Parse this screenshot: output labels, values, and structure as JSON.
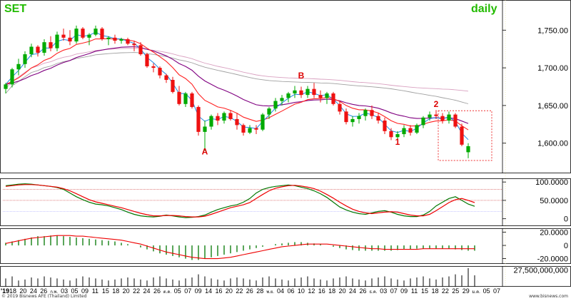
{
  "chart_data": {
    "type": "candlestick",
    "symbol": "SET",
    "period": "daily",
    "colors": {
      "up": "#00aa00",
      "down": "#ee1111",
      "ma_fast": "#1e88e5",
      "ma_red": "#ff2222",
      "ma_purple": "#800080",
      "ma_gray": "#a0a0a0",
      "ma_pink": "#d9a0c0",
      "label_green": "#22bb00",
      "label_red": "#dd0000",
      "osc_green": "#007700",
      "osc_red": "#ee0000",
      "box": "#ee3333",
      "ref_line": "#cc3333"
    },
    "price_axis": {
      "ticks": [
        "1,750.00",
        "1,700.00",
        "1,650.00",
        "1,600.00"
      ],
      "tick_values": [
        1750,
        1700,
        1650,
        1600
      ],
      "ylim": [
        1560,
        1790
      ]
    },
    "stoch_axis": {
      "ticks": [
        "100.0000",
        "50.0000",
        "0"
      ],
      "tick_values": [
        100,
        50,
        0
      ],
      "ylim": [
        -20,
        110
      ]
    },
    "macd_axis": {
      "ticks": [
        "20.0000",
        "0",
        "-20.0000"
      ],
      "tick_values": [
        20,
        0,
        -20
      ],
      "ylim": [
        -28,
        26
      ]
    },
    "volume_axis": {
      "ticks": [
        "27,500,000,000"
      ],
      "tick_values": [
        27500000000
      ],
      "ylim": [
        0,
        34000000000
      ]
    },
    "x_axis": {
      "start_label": "'19",
      "labels": [
        "18",
        "20",
        "24",
        "26",
        "ก.พ.",
        "03",
        "05",
        "09",
        "11",
        "15",
        "18",
        "20",
        "22",
        "24",
        "26",
        "ต.ค.",
        "05",
        "07",
        "09",
        "14",
        "16",
        "20",
        "22",
        "26",
        "28",
        "พ.ย.",
        "04",
        "06",
        "10",
        "12",
        "16",
        "18",
        "20",
        "24",
        "26",
        "ธ.ค.",
        "03",
        "07",
        "09",
        "11",
        "15",
        "18",
        "22",
        "25",
        "29",
        "ม.ค.",
        "05",
        "07"
      ]
    },
    "ohlc": [
      [
        1672,
        1680,
        1666,
        1678
      ],
      [
        1678,
        1700,
        1674,
        1698
      ],
      [
        1698,
        1712,
        1690,
        1705
      ],
      [
        1705,
        1722,
        1700,
        1718
      ],
      [
        1718,
        1732,
        1714,
        1728
      ],
      [
        1728,
        1730,
        1715,
        1720
      ],
      [
        1720,
        1738,
        1716,
        1734
      ],
      [
        1734,
        1742,
        1722,
        1726
      ],
      [
        1726,
        1748,
        1722,
        1744
      ],
      [
        1744,
        1752,
        1736,
        1740
      ],
      [
        1740,
        1750,
        1730,
        1735
      ],
      [
        1735,
        1756,
        1732,
        1752
      ],
      [
        1752,
        1754,
        1738,
        1740
      ],
      [
        1740,
        1746,
        1730,
        1744
      ],
      [
        1744,
        1756,
        1742,
        1752
      ],
      [
        1752,
        1754,
        1736,
        1738
      ],
      [
        1738,
        1742,
        1730,
        1740
      ],
      [
        1740,
        1744,
        1732,
        1736
      ],
      [
        1736,
        1740,
        1732,
        1738
      ],
      [
        1738,
        1740,
        1730,
        1732
      ],
      [
        1732,
        1736,
        1722,
        1730
      ],
      [
        1730,
        1734,
        1716,
        1718
      ],
      [
        1718,
        1720,
        1700,
        1702
      ],
      [
        1702,
        1706,
        1694,
        1700
      ],
      [
        1700,
        1702,
        1686,
        1690
      ],
      [
        1690,
        1692,
        1680,
        1684
      ],
      [
        1684,
        1688,
        1666,
        1668
      ],
      [
        1668,
        1676,
        1650,
        1652
      ],
      [
        1652,
        1668,
        1648,
        1666
      ],
      [
        1666,
        1668,
        1646,
        1648
      ],
      [
        1648,
        1650,
        1610,
        1615
      ],
      [
        1615,
        1630,
        1590,
        1622
      ],
      [
        1622,
        1638,
        1618,
        1636
      ],
      [
        1636,
        1640,
        1624,
        1630
      ],
      [
        1630,
        1642,
        1626,
        1640
      ],
      [
        1640,
        1644,
        1630,
        1632
      ],
      [
        1632,
        1640,
        1618,
        1624
      ],
      [
        1624,
        1626,
        1610,
        1614
      ],
      [
        1614,
        1624,
        1612,
        1620
      ],
      [
        1620,
        1624,
        1612,
        1618
      ],
      [
        1618,
        1640,
        1616,
        1638
      ],
      [
        1638,
        1648,
        1632,
        1646
      ],
      [
        1646,
        1660,
        1642,
        1656
      ],
      [
        1656,
        1664,
        1650,
        1660
      ],
      [
        1660,
        1668,
        1654,
        1666
      ],
      [
        1666,
        1676,
        1660,
        1670
      ],
      [
        1670,
        1675,
        1660,
        1664
      ],
      [
        1664,
        1676,
        1660,
        1672
      ],
      [
        1672,
        1680,
        1660,
        1664
      ],
      [
        1664,
        1670,
        1654,
        1660
      ],
      [
        1660,
        1668,
        1652,
        1666
      ],
      [
        1666,
        1668,
        1650,
        1652
      ],
      [
        1652,
        1656,
        1638,
        1642
      ],
      [
        1642,
        1646,
        1625,
        1628
      ],
      [
        1628,
        1636,
        1622,
        1632
      ],
      [
        1632,
        1640,
        1626,
        1636
      ],
      [
        1636,
        1646,
        1630,
        1644
      ],
      [
        1644,
        1650,
        1632,
        1636
      ],
      [
        1636,
        1640,
        1626,
        1630
      ],
      [
        1630,
        1634,
        1612,
        1616
      ],
      [
        1616,
        1620,
        1604,
        1608
      ],
      [
        1608,
        1616,
        1600,
        1612
      ],
      [
        1612,
        1624,
        1608,
        1620
      ],
      [
        1620,
        1624,
        1610,
        1614
      ],
      [
        1614,
        1626,
        1612,
        1624
      ],
      [
        1624,
        1636,
        1620,
        1634
      ],
      [
        1634,
        1642,
        1630,
        1638
      ],
      [
        1638,
        1644,
        1632,
        1636
      ],
      [
        1636,
        1640,
        1626,
        1630
      ],
      [
        1630,
        1642,
        1626,
        1638
      ],
      [
        1638,
        1640,
        1620,
        1622
      ],
      [
        1622,
        1626,
        1596,
        1598
      ],
      [
        1588,
        1600,
        1580,
        1596
      ]
    ],
    "annotations": [
      {
        "text": "A",
        "index": 31,
        "price": 1585,
        "color": "label_red"
      },
      {
        "text": "B",
        "index": 46,
        "price": 1686,
        "color": "label_red"
      },
      {
        "text": "1",
        "index": 61,
        "price": 1598,
        "color": "label_red"
      },
      {
        "text": "2",
        "index": 67,
        "price": 1648,
        "color": "label_red"
      }
    ],
    "highlight_box": {
      "from_index": 68,
      "to_index": 75,
      "price_high": 1643,
      "price_low": 1577
    },
    "stochastic": {
      "k": [
        90,
        92,
        94,
        95,
        94,
        92,
        90,
        88,
        85,
        80,
        70,
        60,
        52,
        45,
        40,
        38,
        35,
        30,
        25,
        18,
        12,
        8,
        6,
        5,
        7,
        10,
        8,
        5,
        3,
        4,
        6,
        10,
        18,
        25,
        30,
        35,
        38,
        45,
        55,
        70,
        80,
        85,
        88,
        90,
        92,
        90,
        86,
        82,
        76,
        68,
        58,
        45,
        32,
        24,
        18,
        14,
        12,
        16,
        20,
        22,
        18,
        12,
        8,
        6,
        6,
        10,
        20,
        35,
        45,
        55,
        60,
        50,
        40,
        34
      ],
      "d": [
        88,
        90,
        92,
        93,
        93,
        92,
        90,
        88,
        86,
        82,
        76,
        68,
        60,
        52,
        46,
        42,
        38,
        34,
        30,
        25,
        20,
        15,
        11,
        8,
        8,
        9,
        9,
        8,
        6,
        5,
        5,
        7,
        12,
        18,
        24,
        30,
        34,
        38,
        44,
        55,
        66,
        76,
        83,
        87,
        90,
        91,
        89,
        86,
        82,
        75,
        66,
        56,
        45,
        35,
        26,
        20,
        16,
        14,
        16,
        18,
        19,
        18,
        14,
        10,
        8,
        8,
        12,
        22,
        33,
        44,
        52,
        55,
        50,
        44
      ],
      "levels": [
        80,
        50,
        20
      ]
    },
    "macd": {
      "hist": [
        4,
        6,
        8,
        10,
        12,
        14,
        14,
        15,
        15,
        14,
        13,
        12,
        11,
        10,
        9,
        8,
        7,
        6,
        4,
        2,
        0,
        -3,
        -6,
        -9,
        -12,
        -14,
        -16,
        -18,
        -20,
        -22,
        -22,
        -20,
        -18,
        -16,
        -14,
        -12,
        -10,
        -8,
        -6,
        -4,
        -2,
        0,
        2,
        3,
        4,
        5,
        5,
        4,
        3,
        2,
        0,
        -2,
        -4,
        -6,
        -7,
        -8,
        -8,
        -8,
        -8,
        -8,
        -8,
        -7,
        -6,
        -6,
        -5,
        -5,
        -5,
        -5,
        -5,
        -5,
        -6,
        -7,
        -8,
        -8
      ],
      "signal": [
        3,
        5,
        7,
        9,
        11,
        12,
        13,
        14,
        15,
        15,
        15,
        14,
        14,
        13,
        12,
        11,
        10,
        9,
        8,
        6,
        4,
        2,
        -1,
        -4,
        -7,
        -10,
        -12,
        -14,
        -16,
        -18,
        -19,
        -20,
        -20,
        -20,
        -19,
        -18,
        -16,
        -14,
        -12,
        -10,
        -8,
        -6,
        -4,
        -2,
        -1,
        0,
        1,
        2,
        2,
        2,
        2,
        1,
        0,
        -1,
        -2,
        -3,
        -4,
        -5,
        -5,
        -6,
        -6,
        -6,
        -6,
        -6,
        -6,
        -5,
        -5,
        -5,
        -5,
        -5,
        -5,
        -5,
        -5,
        -5
      ]
    },
    "volume_rel": [
      0.4,
      0.5,
      0.3,
      0.35,
      0.45,
      0.4,
      0.5,
      0.45,
      0.4,
      0.35,
      0.3,
      0.4,
      0.5,
      0.45,
      0.4,
      0.35,
      0.3,
      0.35,
      0.4,
      0.45,
      0.4,
      0.35,
      0.3,
      0.45,
      0.5,
      0.4,
      0.35,
      0.3,
      0.4,
      0.45,
      0.6,
      0.5,
      0.4,
      0.35,
      0.3,
      0.4,
      0.45,
      0.4,
      0.35,
      0.3,
      0.45,
      0.5,
      0.4,
      0.35,
      0.3,
      0.4,
      0.45,
      0.5,
      0.4,
      0.35,
      0.3,
      0.4,
      0.45,
      0.5,
      0.4,
      0.35,
      0.3,
      0.4,
      0.45,
      0.5,
      0.4,
      0.35,
      0.3,
      0.4,
      0.45,
      0.5,
      0.4,
      0.35,
      0.45,
      0.5,
      0.6,
      0.55,
      0.9,
      0.55
    ]
  },
  "footer": {
    "copyright": "© 2019 Bisnews AFE (Thailand) Limited",
    "brand": "www.bisnews.com"
  }
}
